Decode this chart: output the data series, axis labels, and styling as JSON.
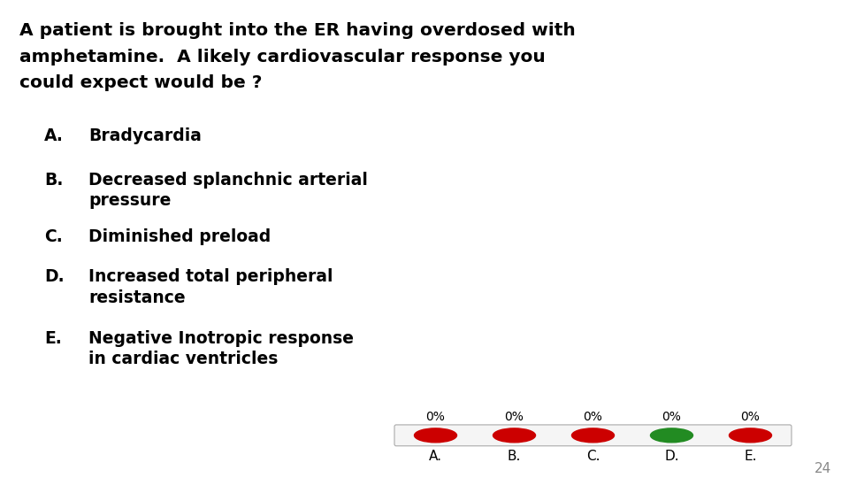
{
  "title_lines": [
    "A patient is brought into the ER having overdosed with",
    "amphetamine.  A likely cardiovascular response you",
    "could expect would be ?"
  ],
  "options": [
    {
      "letter": "A.",
      "text": "Bradycardia"
    },
    {
      "letter": "B.",
      "text": "Decreased splanchnic arterial\npressure"
    },
    {
      "letter": "C.",
      "text": "Diminished preload"
    },
    {
      "letter": "D.",
      "text": "Increased total peripheral\nresistance"
    },
    {
      "letter": "E.",
      "text": "Negative Inotropic response\nin cardiac ventricles"
    }
  ],
  "percentages": [
    "0%",
    "0%",
    "0%",
    "0%",
    "0%"
  ],
  "dot_colors": [
    "#cc0000",
    "#cc0000",
    "#cc0000",
    "#228B22",
    "#cc0000"
  ],
  "bar_labels": [
    "A.",
    "B.",
    "C.",
    "D.",
    "E."
  ],
  "page_number": "24",
  "background_color": "#ffffff",
  "text_color": "#000000",
  "title_fontsize": 14.5,
  "option_fontsize": 13.5,
  "bar_label_fontsize": 11,
  "pct_fontsize": 10,
  "page_fontsize": 11
}
